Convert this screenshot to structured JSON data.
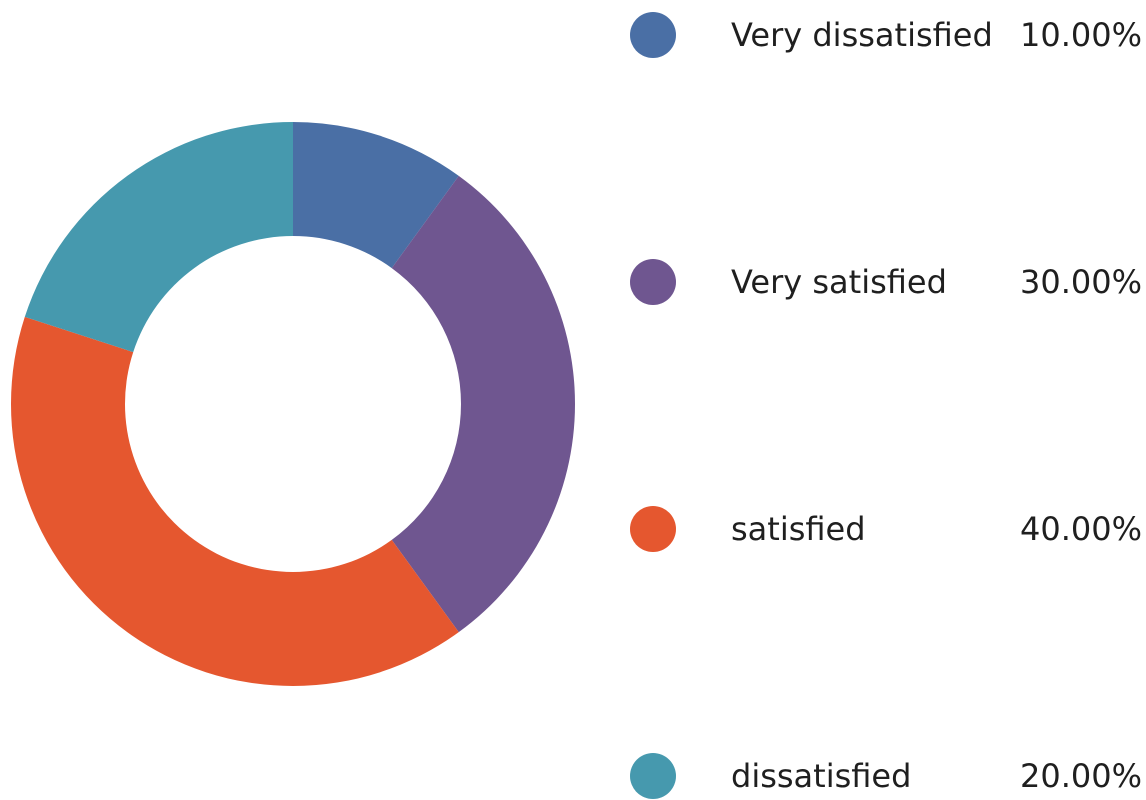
{
  "chart_data": {
    "type": "pie",
    "donut": true,
    "title": "",
    "categories": [
      "Very dissatisfied",
      "Very satisfied",
      "satisfied",
      "dissatisfied"
    ],
    "values": [
      10,
      30,
      40,
      20
    ],
    "value_labels": [
      "10.00%",
      "30.00%",
      "40.00%",
      "20.00%"
    ],
    "colors": [
      "#4A6FA5",
      "#6F5690",
      "#E5572F",
      "#4699AE"
    ],
    "legend_position": "right",
    "grid": false
  }
}
